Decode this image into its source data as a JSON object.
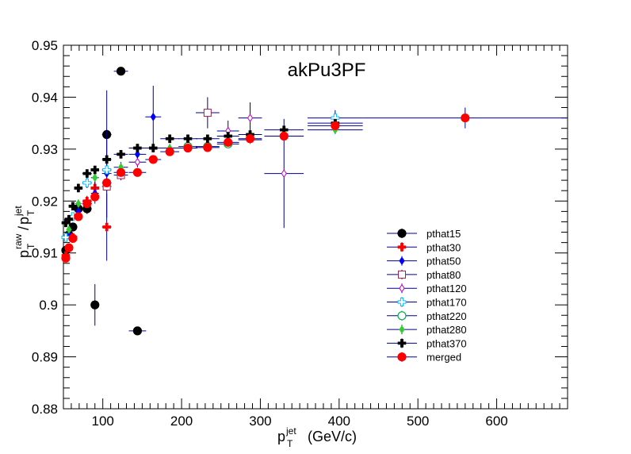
{
  "chart_data": {
    "type": "scatter",
    "title": "akPu3PF",
    "xlabel": {
      "base": "p",
      "sub": "T",
      "sup": "jet",
      "unit": "(GeV/c)"
    },
    "ylabel": {
      "num_base": "p",
      "num_sub": "T",
      "num_sup": "raw",
      "slash": "/",
      "den_base": "p",
      "den_sub": "T",
      "den_sup": "jet"
    },
    "xlim": [
      50,
      690
    ],
    "ylim": [
      0.88,
      0.95
    ],
    "xticks": [
      100,
      200,
      300,
      400,
      500,
      600
    ],
    "xtick_labels": [
      "100",
      "200",
      "300",
      "400",
      "500",
      "600"
    ],
    "yticks": [
      0.88,
      0.89,
      0.9,
      0.91,
      0.92,
      0.93,
      0.94,
      0.95
    ],
    "ytick_labels": [
      "0.88",
      "0.89",
      "0.9",
      "0.91",
      "0.92",
      "0.93",
      "0.94",
      "0.95"
    ],
    "legend_position": "lower-right",
    "series": [
      {
        "name": "pthat15",
        "marker": "circle",
        "color": "#000000",
        "fill": "#000000",
        "points": [
          {
            "x": 53,
            "y": 0.9105,
            "xerr": 2,
            "yerr": 0.0005
          },
          {
            "x": 57,
            "y": 0.9135,
            "xerr": 2,
            "yerr": 0.0005
          },
          {
            "x": 62,
            "y": 0.915,
            "xerr": 3,
            "yerr": 0.0006
          },
          {
            "x": 69,
            "y": 0.9185,
            "xerr": 4,
            "yerr": 0.0008
          },
          {
            "x": 80,
            "y": 0.9185,
            "xerr": 6,
            "yerr": 0.001
          },
          {
            "x": 90,
            "y": 0.9,
            "xerr": 5,
            "yerr": 0.004
          },
          {
            "x": 105,
            "y": 0.9328,
            "xerr": 6,
            "yerr": 0.0085
          },
          {
            "x": 123,
            "y": 0.945,
            "xerr": 9,
            "yerr": 0.0003
          },
          {
            "x": 144,
            "y": 0.895,
            "xerr": 11,
            "yerr": 0.0003
          }
        ]
      },
      {
        "name": "pthat30",
        "marker": "cross",
        "color": "#ff0000",
        "fill": "#ff0000",
        "points": [
          {
            "x": 53,
            "y": 0.9095,
            "xerr": 2,
            "yerr": 0.0005
          },
          {
            "x": 62,
            "y": 0.913,
            "xerr": 3,
            "yerr": 0.0006
          },
          {
            "x": 69,
            "y": 0.917,
            "xerr": 4,
            "yerr": 0.0008
          },
          {
            "x": 80,
            "y": 0.92,
            "xerr": 6,
            "yerr": 0.001
          },
          {
            "x": 90,
            "y": 0.9225,
            "xerr": 5,
            "yerr": 0.002
          },
          {
            "x": 105,
            "y": 0.915,
            "xerr": 6,
            "yerr": 0.0065
          }
        ]
      },
      {
        "name": "pthat50",
        "marker": "diamond",
        "color": "#0000ff",
        "fill": "#0000ff",
        "points": [
          {
            "x": 57,
            "y": 0.9135,
            "xerr": 2,
            "yerr": 0.0005
          },
          {
            "x": 69,
            "y": 0.918,
            "xerr": 4,
            "yerr": 0.0008
          },
          {
            "x": 90,
            "y": 0.9215,
            "xerr": 5,
            "yerr": 0.002
          },
          {
            "x": 105,
            "y": 0.9253,
            "xerr": 6,
            "yerr": 0.0085
          },
          {
            "x": 144,
            "y": 0.929,
            "xerr": 11,
            "yerr": 0.002
          },
          {
            "x": 164,
            "y": 0.9362,
            "xerr": 10,
            "yerr": 0.006
          }
        ]
      },
      {
        "name": "pthat80",
        "marker": "open-square",
        "color": "#a0204a",
        "fill": "none",
        "points": [
          {
            "x": 105,
            "y": 0.9228,
            "xerr": 6,
            "yerr": 0.001
          },
          {
            "x": 123,
            "y": 0.925,
            "xerr": 9,
            "yerr": 0.001
          },
          {
            "x": 233,
            "y": 0.937,
            "xerr": 15,
            "yerr": 0.003
          }
        ]
      },
      {
        "name": "pthat120",
        "marker": "open-diamond",
        "color": "#c000c0",
        "fill": "none",
        "points": [
          {
            "x": 144,
            "y": 0.9275,
            "xerr": 11,
            "yerr": 0.001
          },
          {
            "x": 259,
            "y": 0.9335,
            "xerr": 14,
            "yerr": 0.002
          },
          {
            "x": 287,
            "y": 0.936,
            "xerr": 15,
            "yerr": 0.003
          },
          {
            "x": 330,
            "y": 0.9253,
            "xerr": 25,
            "yerr": 0.0105
          }
        ]
      },
      {
        "name": "pthat170",
        "marker": "open-cross",
        "color": "#00c0ff",
        "fill": "none",
        "points": [
          {
            "x": 53,
            "y": 0.913,
            "xerr": 2,
            "yerr": 0.0005
          },
          {
            "x": 62,
            "y": 0.917,
            "xerr": 3,
            "yerr": 0.0006
          },
          {
            "x": 80,
            "y": 0.9235,
            "xerr": 6,
            "yerr": 0.001
          },
          {
            "x": 105,
            "y": 0.926,
            "xerr": 6,
            "yerr": 0.001
          },
          {
            "x": 395,
            "y": 0.936,
            "xerr": 35,
            "yerr": 0.0015
          }
        ]
      },
      {
        "name": "pthat220",
        "marker": "open-circle",
        "color": "#00b050",
        "fill": "none",
        "points": [
          {
            "x": 208,
            "y": 0.9305,
            "xerr": 12,
            "yerr": 0.0008
          },
          {
            "x": 233,
            "y": 0.9305,
            "xerr": 15,
            "yerr": 0.0008
          },
          {
            "x": 259,
            "y": 0.931,
            "xerr": 14,
            "yerr": 0.0008
          }
        ]
      },
      {
        "name": "pthat280",
        "marker": "diamond",
        "color": "#33cc33",
        "fill": "#33cc33",
        "points": [
          {
            "x": 57,
            "y": 0.9145,
            "xerr": 2,
            "yerr": 0.0005
          },
          {
            "x": 69,
            "y": 0.9195,
            "xerr": 4,
            "yerr": 0.0008
          },
          {
            "x": 90,
            "y": 0.9245,
            "xerr": 5,
            "yerr": 0.001
          },
          {
            "x": 123,
            "y": 0.9265,
            "xerr": 9,
            "yerr": 0.001
          },
          {
            "x": 185,
            "y": 0.9302,
            "xerr": 12,
            "yerr": 0.0008
          },
          {
            "x": 287,
            "y": 0.9318,
            "xerr": 15,
            "yerr": 0.0008
          },
          {
            "x": 395,
            "y": 0.9337,
            "xerr": 35,
            "yerr": 0.0008
          }
        ]
      },
      {
        "name": "pthat370",
        "marker": "cross",
        "color": "#000000",
        "fill": "#000000",
        "points": [
          {
            "x": 53,
            "y": 0.9158,
            "xerr": 2,
            "yerr": 0.0005
          },
          {
            "x": 57,
            "y": 0.9165,
            "xerr": 2,
            "yerr": 0.0005
          },
          {
            "x": 62,
            "y": 0.919,
            "xerr": 3,
            "yerr": 0.0006
          },
          {
            "x": 69,
            "y": 0.9225,
            "xerr": 4,
            "yerr": 0.0008
          },
          {
            "x": 80,
            "y": 0.9253,
            "xerr": 6,
            "yerr": 0.0008
          },
          {
            "x": 90,
            "y": 0.926,
            "xerr": 5,
            "yerr": 0.0008
          },
          {
            "x": 105,
            "y": 0.928,
            "xerr": 6,
            "yerr": 0.0008
          },
          {
            "x": 123,
            "y": 0.929,
            "xerr": 9,
            "yerr": 0.0008
          },
          {
            "x": 144,
            "y": 0.9302,
            "xerr": 11,
            "yerr": 0.0008
          },
          {
            "x": 164,
            "y": 0.9302,
            "xerr": 10,
            "yerr": 0.0008
          },
          {
            "x": 185,
            "y": 0.932,
            "xerr": 12,
            "yerr": 0.0008
          },
          {
            "x": 208,
            "y": 0.932,
            "xerr": 12,
            "yerr": 0.0008
          },
          {
            "x": 233,
            "y": 0.932,
            "xerr": 15,
            "yerr": 0.0008
          },
          {
            "x": 259,
            "y": 0.9325,
            "xerr": 14,
            "yerr": 0.0008
          },
          {
            "x": 287,
            "y": 0.9328,
            "xerr": 15,
            "yerr": 0.0008
          },
          {
            "x": 330,
            "y": 0.9337,
            "xerr": 25,
            "yerr": 0.0008
          },
          {
            "x": 395,
            "y": 0.935,
            "xerr": 35,
            "yerr": 0.0008
          }
        ]
      },
      {
        "name": "merged",
        "marker": "circle",
        "color": "#ff0000",
        "fill": "#ff0000",
        "points": [
          {
            "x": 53,
            "y": 0.909,
            "xerr": 2,
            "yerr": 0.0005
          },
          {
            "x": 57,
            "y": 0.911,
            "xerr": 2,
            "yerr": 0.0005
          },
          {
            "x": 62,
            "y": 0.9128,
            "xerr": 3,
            "yerr": 0.0005
          },
          {
            "x": 69,
            "y": 0.917,
            "xerr": 4,
            "yerr": 0.0006
          },
          {
            "x": 80,
            "y": 0.9195,
            "xerr": 6,
            "yerr": 0.0006
          },
          {
            "x": 90,
            "y": 0.9208,
            "xerr": 5,
            "yerr": 0.0006
          },
          {
            "x": 105,
            "y": 0.9235,
            "xerr": 6,
            "yerr": 0.0006
          },
          {
            "x": 123,
            "y": 0.9255,
            "xerr": 9,
            "yerr": 0.0006
          },
          {
            "x": 144,
            "y": 0.9255,
            "xerr": 11,
            "yerr": 0.0006
          },
          {
            "x": 164,
            "y": 0.928,
            "xerr": 10,
            "yerr": 0.0006
          },
          {
            "x": 185,
            "y": 0.9295,
            "xerr": 12,
            "yerr": 0.0006
          },
          {
            "x": 208,
            "y": 0.9302,
            "xerr": 12,
            "yerr": 0.0006
          },
          {
            "x": 233,
            "y": 0.9303,
            "xerr": 15,
            "yerr": 0.0006
          },
          {
            "x": 259,
            "y": 0.9313,
            "xerr": 14,
            "yerr": 0.0006
          },
          {
            "x": 287,
            "y": 0.932,
            "xerr": 15,
            "yerr": 0.0006
          },
          {
            "x": 330,
            "y": 0.9325,
            "xerr": 25,
            "yerr": 0.0008
          },
          {
            "x": 395,
            "y": 0.9345,
            "xerr": 35,
            "yerr": 0.0008
          },
          {
            "x": 560,
            "y": 0.936,
            "xerr": 130,
            "yerr": 0.002
          }
        ]
      }
    ]
  }
}
